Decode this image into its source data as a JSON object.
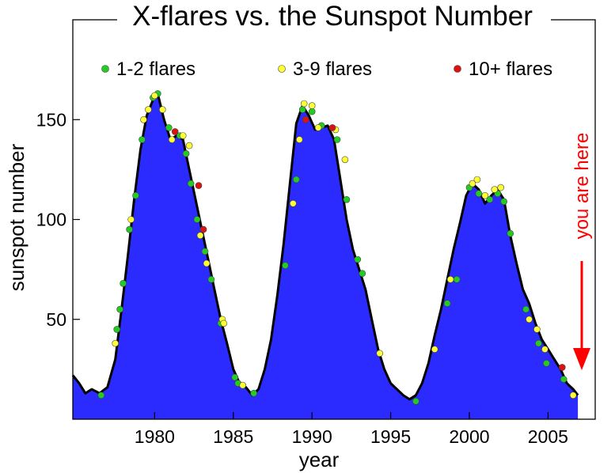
{
  "chart_data": {
    "type": "area",
    "title": "X-flares vs. the Sunspot Number",
    "xlabel": "year",
    "ylabel": "sunspot number",
    "xlim": [
      1974.8,
      2008.0
    ],
    "ylim": [
      0,
      200
    ],
    "x_ticks": [
      1980,
      1985,
      1990,
      1995,
      2000,
      2005
    ],
    "y_ticks": [
      50,
      100,
      150
    ],
    "grid": false,
    "legend_placement": "top",
    "colors": {
      "area_fill": "#2b2bff",
      "curve": "#000000",
      "flares_1_2": "#22cc22",
      "flares_3_9": "#ffff33",
      "flares_10_plus": "#dd1111",
      "annotation": "#ff0000"
    },
    "legend": [
      {
        "label": "1-2 flares",
        "color_key": "flares_1_2"
      },
      {
        "label": "3-9 flares",
        "color_key": "flares_3_9"
      },
      {
        "label": "10+ flares",
        "color_key": "flares_10_plus"
      }
    ],
    "sunspot_series": {
      "name": "sunspot number",
      "x": [
        1974.8,
        1975.2,
        1975.6,
        1976.0,
        1976.5,
        1977.0,
        1977.5,
        1977.9,
        1978.3,
        1978.7,
        1979.1,
        1979.5,
        1979.9,
        1980.2,
        1980.6,
        1981.0,
        1981.4,
        1981.8,
        1982.2,
        1982.6,
        1983.0,
        1983.4,
        1983.8,
        1984.2,
        1984.6,
        1985.0,
        1985.4,
        1985.8,
        1986.2,
        1986.6,
        1987.0,
        1987.4,
        1987.8,
        1988.2,
        1988.6,
        1989.0,
        1989.4,
        1989.8,
        1990.2,
        1990.6,
        1991.0,
        1991.4,
        1991.8,
        1992.2,
        1992.6,
        1993.0,
        1993.4,
        1993.8,
        1994.2,
        1994.6,
        1995.0,
        1995.4,
        1995.8,
        1996.2,
        1996.6,
        1997.0,
        1997.4,
        1997.8,
        1998.2,
        1998.6,
        1999.0,
        1999.4,
        1999.8,
        2000.2,
        2000.6,
        2001.0,
        2001.4,
        2001.8,
        2002.2,
        2002.6,
        2003.0,
        2003.4,
        2003.8,
        2004.2,
        2004.6,
        2005.0,
        2005.4,
        2005.8,
        2006.2,
        2006.6,
        2006.9
      ],
      "y": [
        22,
        18,
        13,
        15,
        13,
        16,
        30,
        55,
        82,
        110,
        135,
        152,
        160,
        163,
        150,
        140,
        142,
        140,
        125,
        110,
        95,
        80,
        65,
        50,
        38,
        25,
        18,
        16,
        12,
        15,
        25,
        40,
        62,
        88,
        118,
        148,
        157,
        152,
        145,
        146,
        147,
        140,
        120,
        100,
        85,
        75,
        65,
        50,
        35,
        25,
        18,
        15,
        12,
        10,
        12,
        18,
        28,
        42,
        55,
        70,
        85,
        98,
        112,
        118,
        115,
        108,
        112,
        115,
        110,
        92,
        78,
        65,
        58,
        48,
        40,
        35,
        30,
        25,
        18,
        15,
        12
      ]
    },
    "flares": {
      "green": {
        "name": "1-2 flares",
        "x": [
          1976.6,
          1977.6,
          1977.8,
          1978.0,
          1978.4,
          1978.8,
          1979.2,
          1979.9,
          1980.2,
          1980.9,
          1981.6,
          1982.0,
          1982.3,
          1982.7,
          1983.2,
          1983.6,
          1984.2,
          1985.1,
          1985.3,
          1986.3,
          1988.3,
          1989.0,
          1989.4,
          1990.0,
          1990.6,
          1991.6,
          1992.2,
          1992.9,
          1993.2,
          1996.6,
          1998.6,
          1999.2,
          2000.0,
          2000.6,
          2001.3,
          2001.8,
          2002.2,
          2002.6,
          2003.6,
          2004.4,
          2004.9,
          2006.0
        ],
        "y": [
          12,
          45,
          55,
          68,
          95,
          112,
          140,
          161,
          163,
          146,
          142,
          133,
          118,
          100,
          84,
          70,
          48,
          21,
          18,
          13,
          77,
          120,
          155,
          154,
          147,
          140,
          110,
          80,
          73,
          9,
          58,
          70,
          116,
          113,
          110,
          113,
          109,
          93,
          55,
          38,
          28,
          20
        ]
      },
      "yellow": {
        "name": "3-9 flares",
        "x": [
          1977.5,
          1978.5,
          1979.3,
          1979.6,
          1980.0,
          1980.5,
          1981.1,
          1981.8,
          1982.2,
          1982.9,
          1983.3,
          1984.3,
          1984.4,
          1985.6,
          1988.8,
          1989.2,
          1989.5,
          1990.0,
          1990.4,
          1991.5,
          1992.1,
          1994.3,
          1997.8,
          1998.8,
          2000.2,
          2000.5,
          2001.0,
          2001.6,
          2002.0,
          2003.8,
          2004.3,
          2004.8,
          2006.6
        ],
        "y": [
          38,
          100,
          150,
          155,
          162,
          155,
          140,
          142,
          137,
          92,
          78,
          50,
          48,
          17,
          108,
          140,
          158,
          157,
          146,
          145,
          130,
          33,
          35,
          70,
          118,
          120,
          112,
          115,
          116,
          50,
          45,
          35,
          12
        ]
      },
      "red": {
        "name": "10+ flares",
        "x": [
          1981.3,
          1982.8,
          1983.1,
          1989.6,
          1991.3,
          2005.9
        ],
        "y": [
          144,
          117,
          95,
          150,
          146,
          26
        ]
      }
    },
    "annotation": "you are here"
  }
}
